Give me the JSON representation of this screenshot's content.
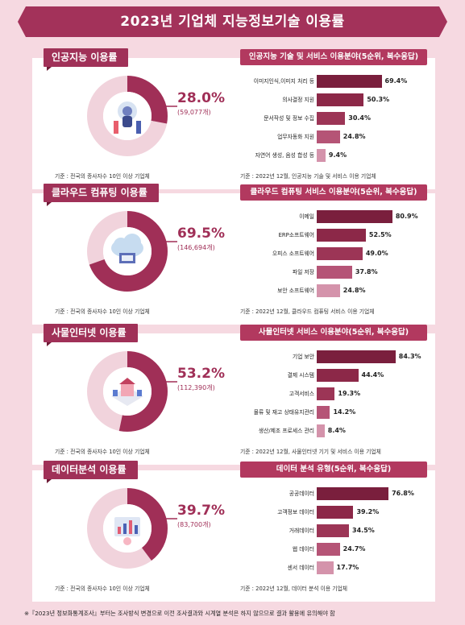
{
  "title": "2023년 기업체 지능정보기술 이용률",
  "footnote": "※『2023년 정보화통계조사』부터는 조사방식 변경으로 이전 조사결과와 시계열 분석은 하지 않으므로 결과 활용에 유의해야 함",
  "colors": {
    "background": "#f6d9e1",
    "banner": "#a3325a",
    "accent": "#a02f57",
    "donut_light": "#f1d3dc",
    "bar_shades": [
      "#7a1f3d",
      "#8c2848",
      "#9c3556",
      "#b55476",
      "#d493ab"
    ]
  },
  "sections": [
    {
      "title": "인공지능 이용률",
      "chart_title": "인공지능 기술 및 서비스 이용분야(5순위, 복수응답)",
      "rate": "28.0%",
      "count": "(59,077개)",
      "note_left": "기준 : 전국의 종사자수 10인 이상 기업체",
      "note_right": "기준 : 2022년 12월, 인공지능 기술 및 서비스 이용 기업체",
      "illustration": "ai-robot-icon"
    },
    {
      "title": "클라우드 컴퓨팅 이용률",
      "chart_title": "클라우드 컴퓨팅 서비스 이용분야(5순위, 복수응답)",
      "rate": "69.5%",
      "count": "(146,694개)",
      "note_left": "기준 : 전국의 종사자수 10인 이상 기업체",
      "note_right": "기준 : 2022년 12월, 클라우드 컴퓨팅 서비스 이용 기업체",
      "illustration": "cloud-icon"
    },
    {
      "title": "사물인터넷 이용률",
      "chart_title": "사물인터넷 서비스 이용분야(5순위, 복수응답)",
      "rate": "53.2%",
      "count": "(112,390개)",
      "note_left": "기준 : 전국의 종사자수 10인 이상 기업체",
      "note_right": "기준 : 2022년 12월, 사물인터넷 기기 및 서비스 이용 기업체",
      "illustration": "smart-home-icon"
    },
    {
      "title": "데이터분석 이용률",
      "chart_title": "데이터 분석 유형(5순위, 복수응답)",
      "rate": "39.7%",
      "count": "(83,700개)",
      "note_left": "기준 : 전국의 종사자수 10인 이상 기업체",
      "note_right": "기준 : 2022년 12월, 데이터 분석 이용 기업체",
      "illustration": "data-analysis-icon"
    }
  ],
  "chart_data": [
    {
      "type": "pie",
      "values": [
        28.0,
        72.0
      ]
    },
    {
      "type": "bar",
      "orientation": "horizontal",
      "xlim": [
        0,
        100
      ],
      "categories": [
        "이미지인식,이미지 처리 등",
        "의사결정 지원",
        "문서작성 및 정보 수집",
        "업무자동화 지원",
        "자연어 생성, 음성 합성 등"
      ],
      "values": [
        69.4,
        50.3,
        30.4,
        24.8,
        9.4
      ],
      "labels": [
        "69.4%",
        "50.3%",
        "30.4%",
        "24.8%",
        "9.4%"
      ]
    },
    {
      "type": "pie",
      "values": [
        69.5,
        30.5
      ]
    },
    {
      "type": "bar",
      "orientation": "horizontal",
      "xlim": [
        0,
        100
      ],
      "categories": [
        "이메일",
        "ERP소프트웨어",
        "오피스 소프트웨어",
        "파일 저장",
        "보안 소프트웨어"
      ],
      "values": [
        80.9,
        52.5,
        49.0,
        37.8,
        24.8
      ],
      "labels": [
        "80.9%",
        "52.5%",
        "49.0%",
        "37.8%",
        "24.8%"
      ]
    },
    {
      "type": "pie",
      "values": [
        53.2,
        46.8
      ]
    },
    {
      "type": "bar",
      "orientation": "horizontal",
      "xlim": [
        0,
        100
      ],
      "categories": [
        "기업 보안",
        "결제 시스템",
        "고객서비스",
        "물류 및 재고 상태유지관리",
        "생산/제조 프로세스 관리"
      ],
      "values": [
        84.3,
        44.4,
        19.3,
        14.2,
        8.4
      ],
      "labels": [
        "84.3%",
        "44.4%",
        "19.3%",
        "14.2%",
        "8.4%"
      ]
    },
    {
      "type": "pie",
      "values": [
        39.7,
        60.3
      ]
    },
    {
      "type": "bar",
      "orientation": "horizontal",
      "xlim": [
        0,
        100
      ],
      "categories": [
        "공공데이터",
        "고객정보 데이터",
        "거래데이터",
        "웹 데이터",
        "센서 데이터"
      ],
      "values": [
        76.8,
        39.2,
        34.5,
        24.7,
        17.7
      ],
      "labels": [
        "76.8%",
        "39.2%",
        "34.5%",
        "24.7%",
        "17.7%"
      ]
    }
  ]
}
